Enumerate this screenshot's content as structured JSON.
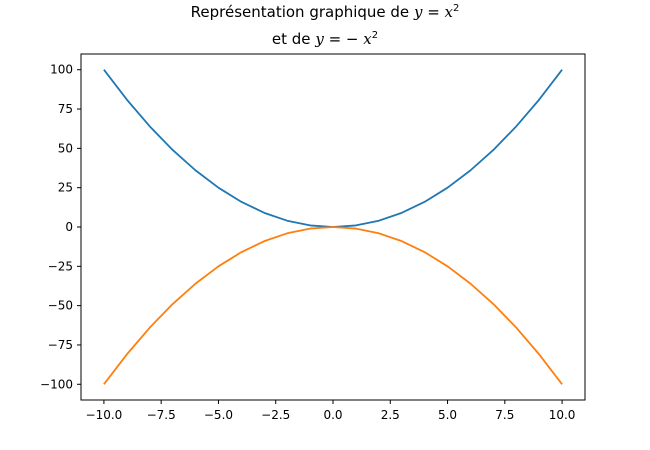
{
  "chart_data": {
    "type": "line",
    "title_lines": [
      {
        "prefix": "Représentation graphique de ",
        "var": "y",
        "eq": " = ",
        "neg": "",
        "base": "x",
        "exp": "2"
      },
      {
        "prefix": "et de ",
        "var": "y",
        "eq": " = ",
        "neg": "− ",
        "base": "x",
        "exp": "2"
      }
    ],
    "xlabel": "",
    "ylabel": "",
    "xlim": [
      -11,
      11
    ],
    "ylim": [
      -110,
      110
    ],
    "x_ticks": [
      -10,
      -7.5,
      -5,
      -2.5,
      0,
      2.5,
      5,
      7.5,
      10
    ],
    "x_tick_labels": [
      "−10.0",
      "−7.5",
      "−5.0",
      "−2.5",
      "0.0",
      "2.5",
      "5.0",
      "7.5",
      "10.0"
    ],
    "y_ticks": [
      100,
      75,
      50,
      25,
      0,
      -25,
      -50,
      -75,
      -100
    ],
    "y_tick_labels": [
      "100",
      "75",
      "50",
      "25",
      "0",
      "−25",
      "−50",
      "−75",
      "−100"
    ],
    "grid": false,
    "x": [
      -10,
      -9,
      -8,
      -7,
      -6,
      -5,
      -4,
      -3,
      -2,
      -1,
      0,
      1,
      2,
      3,
      4,
      5,
      6,
      7,
      8,
      9,
      10
    ],
    "series": [
      {
        "color": "#1f77b4",
        "values": [
          100,
          81,
          64,
          49,
          36,
          25,
          16,
          9,
          4,
          1,
          0,
          1,
          4,
          9,
          16,
          25,
          36,
          49,
          64,
          81,
          100
        ]
      },
      {
        "color": "#ff7f0e",
        "values": [
          -100,
          -81,
          -64,
          -49,
          -36,
          -25,
          -16,
          -9,
          -4,
          -1,
          0,
          -1,
          -4,
          -9,
          -16,
          -25,
          -36,
          -49,
          -64,
          -81,
          -100
        ]
      }
    ]
  }
}
